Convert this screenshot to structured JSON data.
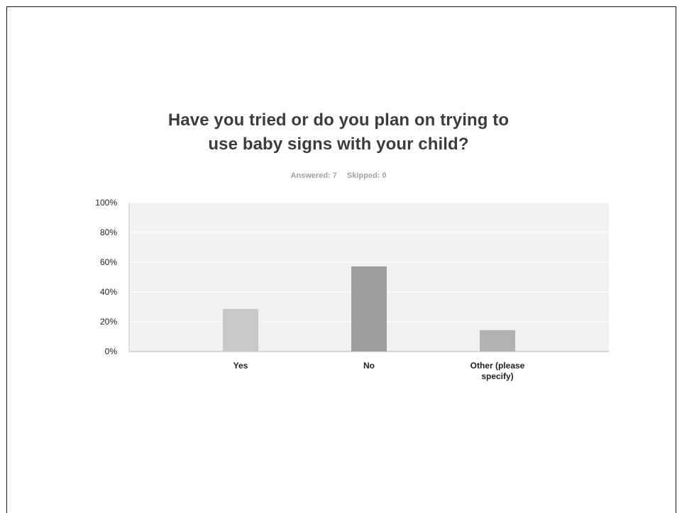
{
  "title_lines": [
    "Have you tried or do you plan on trying to",
    "use baby signs with your child?"
  ],
  "stats": {
    "answered": "Answered: 7",
    "skipped": "Skipped: 0"
  },
  "chart_data": {
    "type": "bar",
    "title": "Have you tried or do you plan on trying to use baby signs with your child?",
    "categories": [
      "Yes",
      "No",
      "Other (please specify)"
    ],
    "category_label_lines": [
      [
        "Yes"
      ],
      [
        "No"
      ],
      [
        "Other (please",
        "specify)"
      ]
    ],
    "values": [
      28.57,
      57.14,
      14.29
    ],
    "bar_colors": [
      "#c8c8c8",
      "#9e9e9e",
      "#b2b2b2"
    ],
    "ylim": [
      0,
      100
    ],
    "yticks": [
      0,
      20,
      40,
      60,
      80,
      100
    ],
    "ytick_labels": [
      "0%",
      "20%",
      "40%",
      "60%",
      "80%",
      "100%"
    ],
    "xlabel": "",
    "ylabel": "",
    "grid": true,
    "plot_background": "#f1f1f1"
  }
}
